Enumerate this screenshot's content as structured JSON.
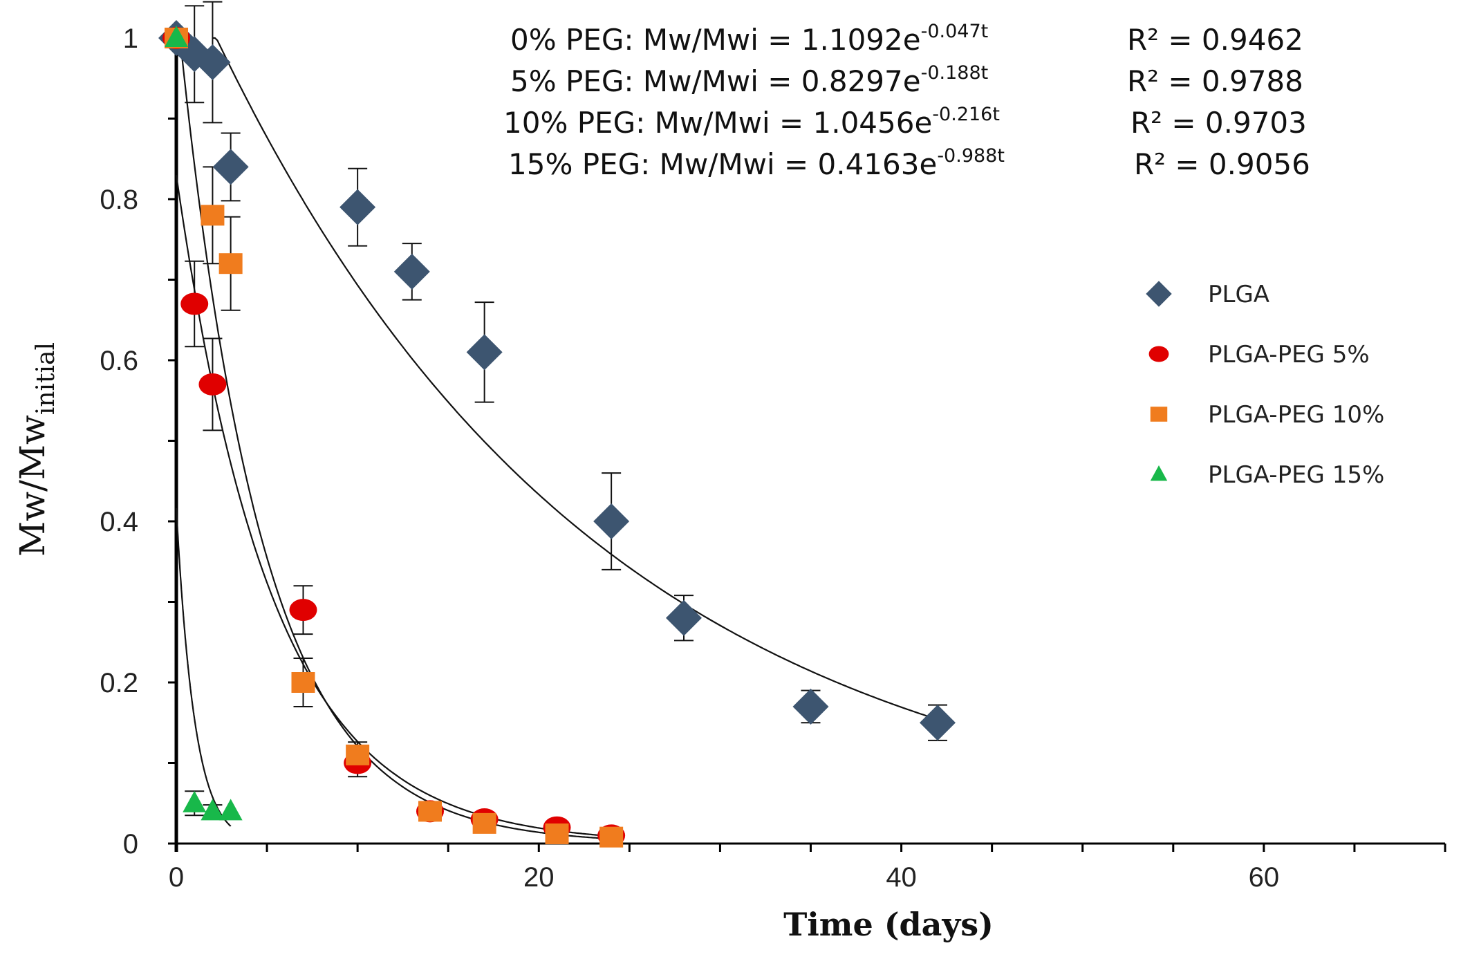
{
  "chart_data": {
    "type": "scatter",
    "title": "",
    "xlabel": "Time (days)",
    "ylabel_main": "Mw/Mw",
    "ylabel_sub": "initial",
    "xlim": [
      0,
      70
    ],
    "ylim": [
      0,
      1
    ],
    "x_ticks": [
      0,
      20,
      40,
      60
    ],
    "y_ticks": [
      0,
      0.2,
      0.4,
      0.6,
      0.8,
      1
    ],
    "y_tick_labels": [
      "0",
      "0.2",
      "0.4",
      "0.6",
      "0.8",
      "1"
    ],
    "grid": false,
    "legend_position": "right",
    "series": [
      {
        "name": "PLGA",
        "marker": "diamond",
        "color": "#3d5570",
        "fit": {
          "a": 1.1092,
          "b": 0.047,
          "x_range": [
            2,
            42
          ]
        },
        "points": [
          {
            "x": 0,
            "y": 1.0,
            "err": 0
          },
          {
            "x": 1,
            "y": 0.98,
            "err": 0.06
          },
          {
            "x": 2,
            "y": 0.97,
            "err": 0.075
          },
          {
            "x": 3,
            "y": 0.84,
            "err": 0.042
          },
          {
            "x": 10,
            "y": 0.79,
            "err": 0.048
          },
          {
            "x": 13,
            "y": 0.71,
            "err": 0.035
          },
          {
            "x": 17,
            "y": 0.61,
            "err": 0.062
          },
          {
            "x": 24,
            "y": 0.4,
            "err": 0.06
          },
          {
            "x": 28,
            "y": 0.28,
            "err": 0.028
          },
          {
            "x": 35,
            "y": 0.17,
            "err": 0.02
          },
          {
            "x": 42,
            "y": 0.15,
            "err": 0.022
          }
        ]
      },
      {
        "name": "PLGA-PEG 5%",
        "marker": "circle",
        "color": "#e00000",
        "fit": {
          "a": 0.8297,
          "b": 0.188,
          "x_range": [
            0,
            24
          ]
        },
        "points": [
          {
            "x": 0,
            "y": 1.0,
            "err": 0
          },
          {
            "x": 1,
            "y": 0.67,
            "err": 0.053
          },
          {
            "x": 2,
            "y": 0.57,
            "err": 0.057
          },
          {
            "x": 7,
            "y": 0.29,
            "err": 0.03
          },
          {
            "x": 10,
            "y": 0.1,
            "err": 0.017
          },
          {
            "x": 14,
            "y": 0.04,
            "err": 0
          },
          {
            "x": 17,
            "y": 0.03,
            "err": 0
          },
          {
            "x": 21,
            "y": 0.02,
            "err": 0
          },
          {
            "x": 24,
            "y": 0.01,
            "err": 0
          }
        ]
      },
      {
        "name": "PLGA-PEG 10%",
        "marker": "square",
        "color": "#f07c1e",
        "fit": {
          "a": 1.0456,
          "b": 0.216,
          "x_range": [
            0,
            24
          ]
        },
        "points": [
          {
            "x": 0,
            "y": 1.0,
            "err": 0
          },
          {
            "x": 2,
            "y": 0.78,
            "err": 0.06
          },
          {
            "x": 3,
            "y": 0.72,
            "err": 0.058
          },
          {
            "x": 7,
            "y": 0.2,
            "err": 0.03
          },
          {
            "x": 10,
            "y": 0.11,
            "err": 0.016
          },
          {
            "x": 14,
            "y": 0.04,
            "err": 0
          },
          {
            "x": 17,
            "y": 0.025,
            "err": 0
          },
          {
            "x": 21,
            "y": 0.012,
            "err": 0
          },
          {
            "x": 24,
            "y": 0.008,
            "err": 0
          }
        ]
      },
      {
        "name": "PLGA-PEG 15%",
        "marker": "triangle",
        "color": "#18b84a",
        "fit": {
          "a": 0.4163,
          "b": 0.988,
          "x_range": [
            0,
            3
          ]
        },
        "points": [
          {
            "x": 0,
            "y": 1.0,
            "err": 0
          },
          {
            "x": 1,
            "y": 0.05,
            "err": 0.015
          },
          {
            "x": 2,
            "y": 0.04,
            "err": 0.008
          },
          {
            "x": 3,
            "y": 0.04,
            "err": 0
          }
        ]
      }
    ],
    "annotations": [
      {
        "label": "0% PEG:  Mw/Mwi = 1.1092e",
        "exponent": "-0.047t",
        "r2": "R² = 0.9462"
      },
      {
        "label": "5% PEG:  Mw/Mwi = 0.8297e",
        "exponent": "-0.188t",
        "r2": "R² = 0.9788"
      },
      {
        "label": "10% PEG: Mw/Mwi = 1.0456e",
        "exponent": "-0.216t",
        "r2": "R² = 0.9703"
      },
      {
        "label": "15% PEG: Mw/Mwi = 0.4163e",
        "exponent": "-0.988t",
        "r2": "R² = 0.9056"
      }
    ]
  }
}
